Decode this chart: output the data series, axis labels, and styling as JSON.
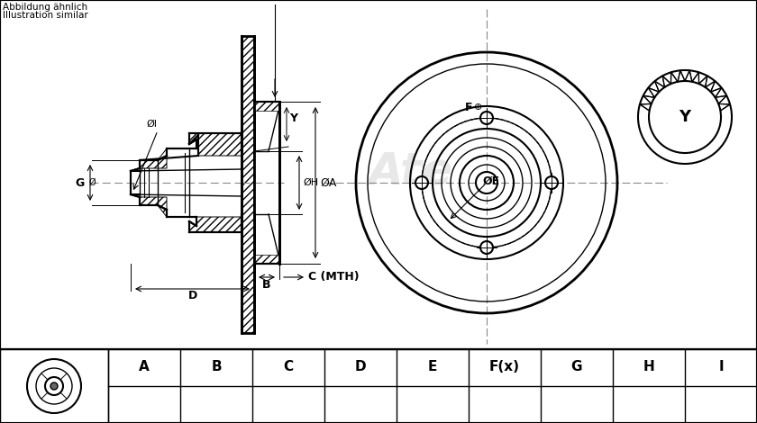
{
  "bg_color": "#ffffff",
  "border_color": "#000000",
  "title_text1": "Abbildung ähnlich",
  "title_text2": "Illustration similar",
  "col_labels": [
    "A",
    "B",
    "C",
    "D",
    "E",
    "F(x)",
    "G",
    "H",
    "I"
  ],
  "watermark": "Ate",
  "label_Y": "Y",
  "label_F": "F",
  "label_OE": "ØE",
  "label_OI": "ØI",
  "label_G": "G",
  "label_OH": "ØH",
  "label_OA": "ØA",
  "label_B": "B",
  "label_C": "C (MTH)",
  "label_D": "D"
}
